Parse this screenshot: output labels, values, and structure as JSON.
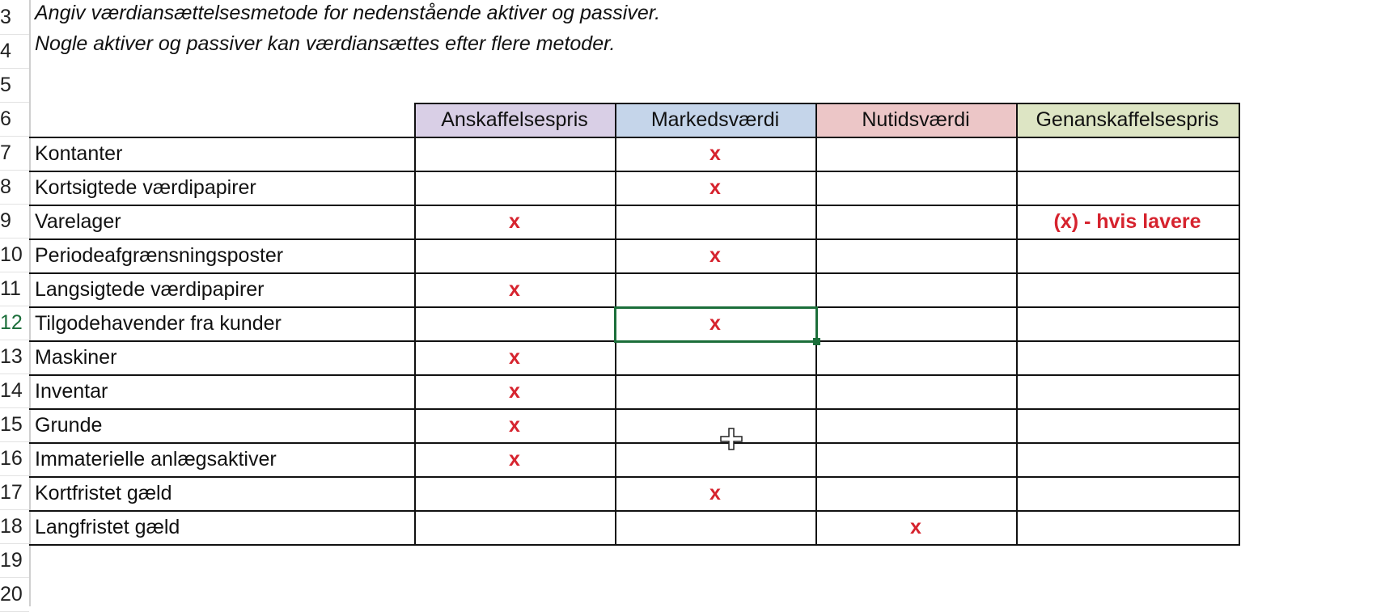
{
  "row_numbers": [
    "3",
    "4",
    "5",
    "6",
    "7",
    "8",
    "9",
    "10",
    "11",
    "12",
    "13",
    "14",
    "15",
    "16",
    "17",
    "18",
    "19",
    "20"
  ],
  "notes": [
    "Angiv værdiansættelsesmetode for nedenstående aktiver og passiver.",
    "Nogle aktiver og passiver kan værdiansættes efter flere metoder."
  ],
  "columns": [
    {
      "label": "Anskaffelsespris",
      "color": "#d9cfe6"
    },
    {
      "label": "Markedsværdi",
      "color": "#c5d5ea"
    },
    {
      "label": "Nutidsværdi",
      "color": "#ecc6c7"
    },
    {
      "label": "Genanskaffelsespris",
      "color": "#dde5c4"
    }
  ],
  "rows": [
    {
      "label": "Kontanter",
      "cells": [
        "",
        "x",
        "",
        ""
      ]
    },
    {
      "label": "Kortsigtede værdipapirer",
      "cells": [
        "",
        "x",
        "",
        ""
      ]
    },
    {
      "label": "Varelager",
      "cells": [
        "x",
        "",
        "",
        "(x) - hvis lavere"
      ]
    },
    {
      "label": "Periodeafgrænsningsposter",
      "cells": [
        "",
        "x",
        "",
        ""
      ]
    },
    {
      "label": "Langsigtede værdipapirer",
      "cells": [
        "x",
        "",
        "",
        ""
      ]
    },
    {
      "label": "Tilgodehavender fra kunder",
      "cells": [
        "",
        "x",
        "",
        ""
      ]
    },
    {
      "label": "Maskiner",
      "cells": [
        "x",
        "",
        "",
        ""
      ]
    },
    {
      "label": "Inventar",
      "cells": [
        "x",
        "",
        "",
        ""
      ]
    },
    {
      "label": "Grunde",
      "cells": [
        "x",
        "",
        "",
        ""
      ]
    },
    {
      "label": "Immaterielle anlægsaktiver",
      "cells": [
        "x",
        "",
        "",
        ""
      ]
    },
    {
      "label": "Kortfristet gæld",
      "cells": [
        "",
        "x",
        "",
        ""
      ]
    },
    {
      "label": "Langfristet gæld",
      "cells": [
        "",
        "",
        "x",
        ""
      ]
    }
  ],
  "selection": {
    "row_number": "12",
    "column": "Markedsværdi"
  },
  "accent_color": "#1b6e3a",
  "mark_color": "#d6232e"
}
